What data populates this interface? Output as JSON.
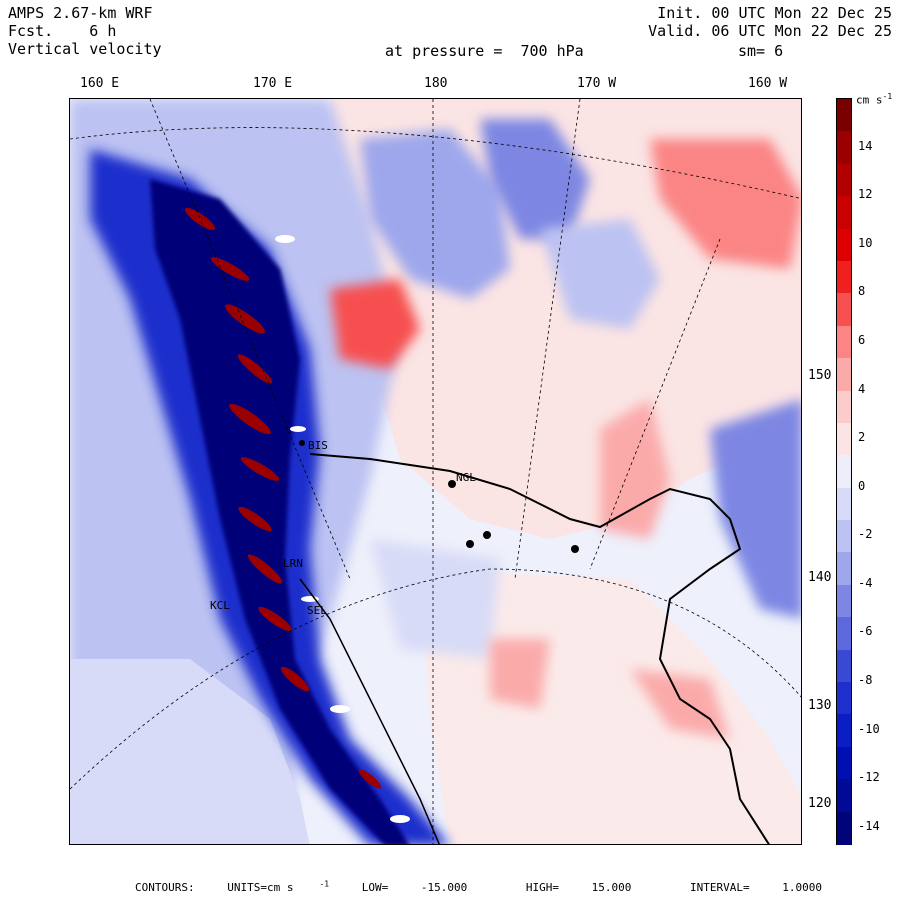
{
  "header": {
    "model": "AMPS 2.67-km WRF",
    "fcst_label": "Fcst.",
    "fcst_value": "6 h",
    "variable": "Vertical velocity",
    "init": "Init. 00 UTC Mon 22 Dec 25",
    "valid": "Valid. 06 UTC Mon 22 Dec 25",
    "level": "at pressure =  700 hPa",
    "smoothing": "sm= 6"
  },
  "axes": {
    "longitudes": [
      "160 E",
      "170 E",
      "180",
      "170 W",
      "160 W"
    ],
    "latitudes": [
      "150 W",
      "140 W",
      "130 W",
      "120 W"
    ]
  },
  "stations": [
    "BIS",
    "NGL",
    "LRN",
    "SEL",
    "KCL"
  ],
  "legend": {
    "unit": "cm s",
    "unit_exp": "-1",
    "labels": [
      "14",
      "12",
      "10",
      "8",
      "6",
      "4",
      "2",
      "0",
      "-2",
      "-4",
      "-6",
      "-8",
      "-10",
      "-12",
      "-14"
    ],
    "colors": [
      "#7a0000",
      "#9a0000",
      "#b00000",
      "#c80000",
      "#de0000",
      "#f02020",
      "#f75050",
      "#fb8585",
      "#fbaaaa",
      "#fbcccc",
      "#fbe4e4",
      "#eeeefb",
      "#d8dbf7",
      "#bcc2f2",
      "#9ea7ec",
      "#7d87e3",
      "#5c68dc",
      "#3a49d4",
      "#1e2fcc",
      "#0a1ec4",
      "#0010b0",
      "#000a96",
      "#000478"
    ]
  },
  "footer": {
    "contours_label": "CONTOURS:",
    "units_label": "UNITS=cm s",
    "units_exp": "-1",
    "low_label": "LOW=",
    "low": "-15.000",
    "high_label": "HIGH=",
    "high": "15.000",
    "interval_label": "INTERVAL=",
    "interval": "1.0000"
  }
}
